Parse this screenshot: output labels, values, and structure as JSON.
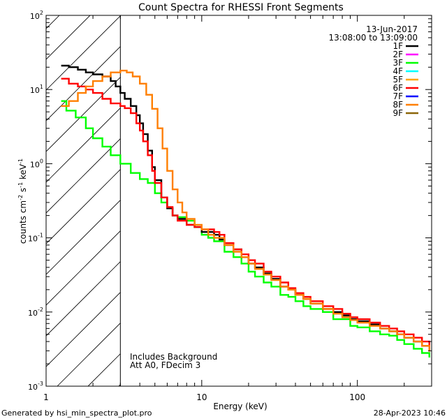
{
  "chart_data": {
    "type": "line",
    "title": "Count Spectra for RHESSI Front Segments",
    "xlabel": "Energy (keV)",
    "ylabel_parts": [
      "counts cm",
      "-2",
      " s",
      "-1",
      " keV",
      "-1"
    ],
    "xscale": "log",
    "yscale": "log",
    "xlim": [
      1,
      300
    ],
    "ylim": [
      0.001,
      100
    ],
    "x_ticks": [
      {
        "value": 1,
        "label": "1"
      },
      {
        "value": 10,
        "label": "10"
      },
      {
        "value": 100,
        "label": "100"
      }
    ],
    "y_ticks": [
      {
        "value": 100,
        "base": "10",
        "exp": "2"
      },
      {
        "value": 10,
        "base": "10",
        "exp": "1"
      },
      {
        "value": 1,
        "base": "10",
        "exp": "0"
      },
      {
        "value": 0.1,
        "base": "10",
        "exp": "-1"
      },
      {
        "value": 0.01,
        "base": "10",
        "exp": "-2"
      },
      {
        "value": 0.001,
        "base": "10",
        "exp": "-3"
      }
    ],
    "hatched_region_keV": [
      1,
      3
    ],
    "date": "13-Jun-2017",
    "time_range": "13:08:00 to 13:09:00",
    "annotations": [
      "Includes Background",
      "Att A0, FDecim 3"
    ],
    "legend": [
      {
        "name": "1F",
        "color": "#000000"
      },
      {
        "name": "2F",
        "color": "#ff00ff"
      },
      {
        "name": "3F",
        "color": "#00ff00"
      },
      {
        "name": "4F",
        "color": "#00ffff"
      },
      {
        "name": "5F",
        "color": "#ffa500"
      },
      {
        "name": "6F",
        "color": "#ff0000"
      },
      {
        "name": "7F",
        "color": "#0000ff"
      },
      {
        "name": "8F",
        "color": "#ff7f00"
      },
      {
        "name": "9F",
        "color": "#8b6508"
      }
    ],
    "series": [
      {
        "name": "3F",
        "color": "#00ff00",
        "points": [
          [
            1.25,
            7
          ],
          [
            1.35,
            5.2
          ],
          [
            1.55,
            4.2
          ],
          [
            1.8,
            3.0
          ],
          [
            2.0,
            2.2
          ],
          [
            2.3,
            1.7
          ],
          [
            2.6,
            1.3
          ],
          [
            3.0,
            1.0
          ],
          [
            3.5,
            0.75
          ],
          [
            4.0,
            0.62
          ],
          [
            4.5,
            0.55
          ],
          [
            5.0,
            0.4
          ],
          [
            5.5,
            0.3
          ],
          [
            6.0,
            0.25
          ],
          [
            6.5,
            0.2
          ],
          [
            7.0,
            0.19
          ],
          [
            8.0,
            0.17
          ],
          [
            9.0,
            0.14
          ],
          [
            10,
            0.11
          ],
          [
            11,
            0.1
          ],
          [
            12,
            0.09
          ],
          [
            14,
            0.065
          ],
          [
            16,
            0.055
          ],
          [
            18,
            0.045
          ],
          [
            20,
            0.035
          ],
          [
            22,
            0.03
          ],
          [
            25,
            0.025
          ],
          [
            28,
            0.022
          ],
          [
            32,
            0.017
          ],
          [
            36,
            0.016
          ],
          [
            40,
            0.014
          ],
          [
            45,
            0.012
          ],
          [
            50,
            0.011
          ],
          [
            60,
            0.01
          ],
          [
            70,
            0.008
          ],
          [
            80,
            0.008
          ],
          [
            90,
            0.0065
          ],
          [
            100,
            0.0062
          ],
          [
            120,
            0.0055
          ],
          [
            140,
            0.005
          ],
          [
            160,
            0.0048
          ],
          [
            180,
            0.0042
          ],
          [
            200,
            0.0037
          ],
          [
            230,
            0.0032
          ],
          [
            260,
            0.0028
          ],
          [
            290,
            0.0025
          ]
        ]
      },
      {
        "name": "1F",
        "color": "#000000",
        "points": [
          [
            1.25,
            21
          ],
          [
            1.4,
            20
          ],
          [
            1.6,
            18.5
          ],
          [
            1.8,
            17
          ],
          [
            2.0,
            16
          ],
          [
            2.3,
            15
          ],
          [
            2.6,
            13
          ],
          [
            2.8,
            11
          ],
          [
            3.0,
            9
          ],
          [
            3.2,
            7.5
          ],
          [
            3.5,
            6
          ],
          [
            3.8,
            4.5
          ],
          [
            4.0,
            3.5
          ],
          [
            4.2,
            2.5
          ],
          [
            4.5,
            1.5
          ],
          [
            4.8,
            0.9
          ],
          [
            5.0,
            0.6
          ],
          [
            5.5,
            0.35
          ],
          [
            6.0,
            0.25
          ],
          [
            6.5,
            0.2
          ],
          [
            7.0,
            0.18
          ],
          [
            8.0,
            0.15
          ],
          [
            9.0,
            0.14
          ],
          [
            10,
            0.12
          ],
          [
            11,
            0.12
          ],
          [
            12,
            0.11
          ],
          [
            13,
            0.095
          ],
          [
            14,
            0.08
          ],
          [
            16,
            0.07
          ],
          [
            18,
            0.055
          ],
          [
            20,
            0.045
          ],
          [
            22,
            0.04
          ],
          [
            25,
            0.033
          ],
          [
            28,
            0.028
          ],
          [
            32,
            0.022
          ],
          [
            36,
            0.02
          ],
          [
            40,
            0.017
          ],
          [
            45,
            0.015
          ],
          [
            50,
            0.013
          ],
          [
            60,
            0.011
          ],
          [
            70,
            0.01
          ],
          [
            80,
            0.009
          ],
          [
            90,
            0.008
          ],
          [
            100,
            0.0075
          ],
          [
            120,
            0.0068
          ],
          [
            140,
            0.006
          ],
          [
            160,
            0.0055
          ],
          [
            180,
            0.005
          ],
          [
            200,
            0.0045
          ],
          [
            230,
            0.004
          ],
          [
            260,
            0.0035
          ],
          [
            290,
            0.003
          ]
        ]
      },
      {
        "name": "6F",
        "color": "#ff0000",
        "points": [
          [
            1.25,
            14
          ],
          [
            1.4,
            12
          ],
          [
            1.6,
            11
          ],
          [
            1.8,
            10
          ],
          [
            2.0,
            9
          ],
          [
            2.3,
            7.5
          ],
          [
            2.6,
            6.5
          ],
          [
            3.0,
            6
          ],
          [
            3.2,
            5.6
          ],
          [
            3.5,
            4.8
          ],
          [
            3.8,
            3.5
          ],
          [
            4.0,
            2.8
          ],
          [
            4.2,
            2.0
          ],
          [
            4.5,
            1.3
          ],
          [
            4.8,
            0.8
          ],
          [
            5.0,
            0.55
          ],
          [
            5.5,
            0.35
          ],
          [
            6.0,
            0.26
          ],
          [
            6.5,
            0.2
          ],
          [
            7.0,
            0.17
          ],
          [
            8.0,
            0.15
          ],
          [
            9.0,
            0.14
          ],
          [
            10,
            0.13
          ],
          [
            11,
            0.13
          ],
          [
            12,
            0.12
          ],
          [
            13,
            0.11
          ],
          [
            14,
            0.085
          ],
          [
            16,
            0.07
          ],
          [
            18,
            0.06
          ],
          [
            20,
            0.05
          ],
          [
            22,
            0.045
          ],
          [
            25,
            0.035
          ],
          [
            28,
            0.03
          ],
          [
            32,
            0.025
          ],
          [
            36,
            0.021
          ],
          [
            40,
            0.018
          ],
          [
            45,
            0.016
          ],
          [
            50,
            0.014
          ],
          [
            60,
            0.012
          ],
          [
            70,
            0.011
          ],
          [
            80,
            0.0095
          ],
          [
            90,
            0.0085
          ],
          [
            100,
            0.008
          ],
          [
            120,
            0.0072
          ],
          [
            140,
            0.0065
          ],
          [
            160,
            0.006
          ],
          [
            180,
            0.0055
          ],
          [
            200,
            0.005
          ],
          [
            230,
            0.0045
          ],
          [
            260,
            0.004
          ],
          [
            290,
            0.0035
          ]
        ]
      },
      {
        "name": "8F",
        "color": "#ff7f00",
        "points": [
          [
            1.25,
            6
          ],
          [
            1.4,
            7
          ],
          [
            1.6,
            9
          ],
          [
            1.8,
            11
          ],
          [
            2.0,
            13
          ],
          [
            2.3,
            15
          ],
          [
            2.6,
            17
          ],
          [
            3.0,
            18
          ],
          [
            3.3,
            17
          ],
          [
            3.6,
            15
          ],
          [
            4.0,
            12
          ],
          [
            4.4,
            8.5
          ],
          [
            4.8,
            5.5
          ],
          [
            5.2,
            3.0
          ],
          [
            5.6,
            1.6
          ],
          [
            6.0,
            0.8
          ],
          [
            6.5,
            0.45
          ],
          [
            7.0,
            0.3
          ],
          [
            7.5,
            0.22
          ],
          [
            8.0,
            0.18
          ],
          [
            9.0,
            0.15
          ],
          [
            10,
            0.13
          ],
          [
            11,
            0.11
          ],
          [
            12,
            0.1
          ],
          [
            14,
            0.08
          ],
          [
            16,
            0.065
          ],
          [
            18,
            0.055
          ],
          [
            20,
            0.045
          ],
          [
            22,
            0.038
          ],
          [
            25,
            0.032
          ],
          [
            28,
            0.027
          ],
          [
            32,
            0.022
          ],
          [
            36,
            0.02
          ],
          [
            40,
            0.017
          ],
          [
            45,
            0.015
          ],
          [
            50,
            0.013
          ],
          [
            60,
            0.011
          ],
          [
            70,
            0.0095
          ],
          [
            80,
            0.0085
          ],
          [
            90,
            0.0078
          ],
          [
            100,
            0.0072
          ],
          [
            120,
            0.0065
          ],
          [
            140,
            0.006
          ],
          [
            160,
            0.0055
          ],
          [
            180,
            0.005
          ],
          [
            200,
            0.0045
          ],
          [
            230,
            0.004
          ],
          [
            260,
            0.0035
          ],
          [
            290,
            0.003
          ]
        ]
      }
    ]
  },
  "footer": {
    "left": "Generated by hsi_min_spectra_plot.pro",
    "right": "28-Apr-2023 10:46"
  }
}
